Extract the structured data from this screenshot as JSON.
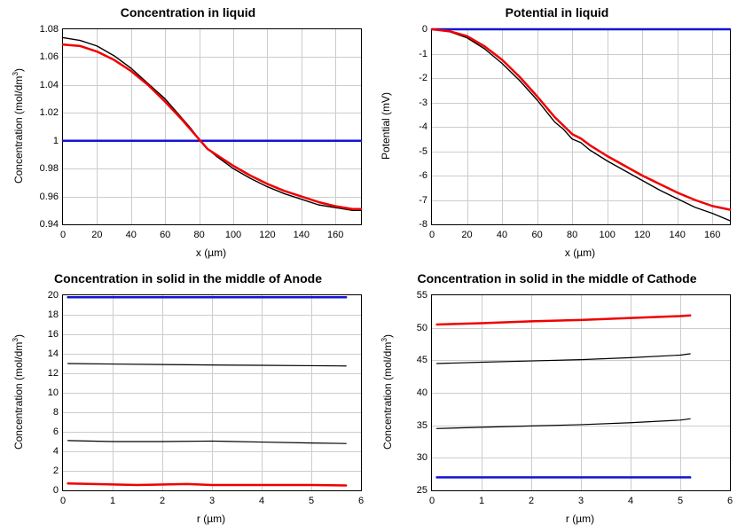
{
  "layout": {
    "rows": 2,
    "cols": 2,
    "panel_title_fontsize": 14,
    "axis_label_fontsize": 12,
    "tick_fontsize": 11,
    "background_color": "#ffffff",
    "grid_color": "#cccccc",
    "axis_color": "#000000"
  },
  "panels": [
    {
      "id": "conc_liquid",
      "title": "Concentration in liquid",
      "xlabel": "x (µm)",
      "ylabel": "Concentration (mol/dm³)",
      "xlim": [
        0,
        175
      ],
      "ylim": [
        0.94,
        1.08
      ],
      "xticks": [
        0,
        20,
        40,
        60,
        80,
        100,
        120,
        140,
        160
      ],
      "yticks": [
        0.94,
        0.96,
        0.98,
        1,
        1.02,
        1.04,
        1.06,
        1.08
      ],
      "series": [
        {
          "color": "#1414d2",
          "width": 2.5,
          "x": [
            0,
            175
          ],
          "y": [
            1.0,
            1.0
          ]
        },
        {
          "color": "#000000",
          "width": 1.4,
          "x": [
            0,
            10,
            20,
            30,
            40,
            50,
            60,
            70,
            75,
            80,
            85,
            90,
            100,
            110,
            120,
            130,
            140,
            150,
            160,
            170,
            175
          ],
          "y": [
            1.074,
            1.072,
            1.068,
            1.061,
            1.052,
            1.041,
            1.03,
            1.016,
            1.009,
            1.001,
            0.994,
            0.989,
            0.98,
            0.973,
            0.967,
            0.962,
            0.958,
            0.954,
            0.952,
            0.95,
            0.95
          ]
        },
        {
          "color": "#f00000",
          "width": 2.5,
          "x": [
            0,
            10,
            20,
            30,
            40,
            50,
            60,
            70,
            75,
            80,
            85,
            90,
            100,
            110,
            120,
            130,
            140,
            150,
            160,
            170,
            175
          ],
          "y": [
            1.069,
            1.068,
            1.064,
            1.058,
            1.05,
            1.04,
            1.028,
            1.015,
            1.008,
            1.001,
            0.994,
            0.99,
            0.982,
            0.975,
            0.969,
            0.964,
            0.96,
            0.956,
            0.953,
            0.951,
            0.951
          ]
        }
      ]
    },
    {
      "id": "potential_liquid",
      "title": "Potential in liquid",
      "xlabel": "x (µm)",
      "ylabel": "Potential (mV)",
      "xlim": [
        0,
        170
      ],
      "ylim": [
        -8,
        0
      ],
      "xticks": [
        0,
        20,
        40,
        60,
        80,
        100,
        120,
        140,
        160
      ],
      "yticks": [
        -8,
        -7,
        -6,
        -5,
        -4,
        -3,
        -2,
        -1,
        0
      ],
      "series": [
        {
          "color": "#1414d2",
          "width": 2.5,
          "x": [
            0,
            170
          ],
          "y": [
            0.0,
            0.0
          ]
        },
        {
          "color": "#000000",
          "width": 1.4,
          "x": [
            0,
            10,
            20,
            30,
            40,
            50,
            60,
            70,
            75,
            80,
            85,
            90,
            100,
            110,
            120,
            130,
            140,
            150,
            160,
            170
          ],
          "y": [
            0.0,
            -0.1,
            -0.35,
            -0.8,
            -1.4,
            -2.1,
            -2.9,
            -3.8,
            -4.1,
            -4.5,
            -4.65,
            -4.95,
            -5.4,
            -5.8,
            -6.2,
            -6.6,
            -6.95,
            -7.3,
            -7.55,
            -7.85
          ]
        },
        {
          "color": "#f00000",
          "width": 2.5,
          "x": [
            0,
            10,
            20,
            30,
            40,
            50,
            60,
            70,
            75,
            80,
            85,
            90,
            100,
            110,
            120,
            130,
            140,
            150,
            160,
            170
          ],
          "y": [
            0.0,
            -0.08,
            -0.28,
            -0.7,
            -1.25,
            -1.95,
            -2.75,
            -3.6,
            -3.95,
            -4.3,
            -4.48,
            -4.75,
            -5.2,
            -5.6,
            -6.0,
            -6.35,
            -6.7,
            -7.0,
            -7.25,
            -7.4
          ]
        }
      ]
    },
    {
      "id": "conc_anode",
      "title": "Concentration in solid in the middle of Anode",
      "xlabel": "r (µm)",
      "ylabel": "Concentration (mol/dm³)",
      "xlim": [
        0,
        6
      ],
      "ylim": [
        0,
        20
      ],
      "xticks": [
        0,
        1,
        2,
        3,
        4,
        5,
        6
      ],
      "yticks": [
        0,
        2,
        4,
        6,
        8,
        10,
        12,
        14,
        16,
        18,
        20
      ],
      "series": [
        {
          "color": "#1414d2",
          "width": 2.5,
          "x": [
            0.1,
            5.7
          ],
          "y": [
            19.8,
            19.8
          ]
        },
        {
          "color": "#000000",
          "width": 1.2,
          "x": [
            0.1,
            1.0,
            2.0,
            3.0,
            4.0,
            5.0,
            5.7
          ],
          "y": [
            13.0,
            12.95,
            12.9,
            12.85,
            12.82,
            12.78,
            12.75
          ]
        },
        {
          "color": "#000000",
          "width": 1.2,
          "x": [
            0.1,
            1.0,
            2.0,
            3.0,
            4.0,
            5.0,
            5.7
          ],
          "y": [
            5.1,
            5.0,
            5.0,
            5.05,
            4.95,
            4.85,
            4.8
          ]
        },
        {
          "color": "#f00000",
          "width": 2.5,
          "x": [
            0.1,
            1.5,
            2.5,
            3.0,
            4.0,
            5.0,
            5.7
          ],
          "y": [
            0.7,
            0.55,
            0.65,
            0.55,
            0.55,
            0.55,
            0.5
          ]
        }
      ]
    },
    {
      "id": "conc_cathode",
      "title": "Concentration in solid in the middle of Cathode",
      "xlabel": "r (µm)",
      "ylabel": "Concentration (mol/dm³)",
      "xlim": [
        0,
        6
      ],
      "ylim": [
        25,
        55
      ],
      "xticks": [
        0,
        1,
        2,
        3,
        4,
        5,
        6
      ],
      "yticks": [
        25,
        30,
        35,
        40,
        45,
        50,
        55
      ],
      "series": [
        {
          "color": "#f00000",
          "width": 2.5,
          "x": [
            0.1,
            1.0,
            2.0,
            3.0,
            4.0,
            5.0,
            5.2
          ],
          "y": [
            50.5,
            50.7,
            51.0,
            51.2,
            51.5,
            51.8,
            51.9
          ]
        },
        {
          "color": "#000000",
          "width": 1.2,
          "x": [
            0.1,
            1.0,
            2.0,
            3.0,
            4.0,
            5.0,
            5.2
          ],
          "y": [
            44.5,
            44.7,
            44.9,
            45.1,
            45.4,
            45.8,
            46.0
          ]
        },
        {
          "color": "#000000",
          "width": 1.2,
          "x": [
            0.1,
            1.0,
            2.0,
            3.0,
            4.0,
            5.0,
            5.2
          ],
          "y": [
            34.5,
            34.7,
            34.9,
            35.1,
            35.4,
            35.8,
            36.0
          ]
        },
        {
          "color": "#1414d2",
          "width": 2.5,
          "x": [
            0.1,
            5.2
          ],
          "y": [
            27.0,
            27.0
          ]
        }
      ]
    }
  ]
}
